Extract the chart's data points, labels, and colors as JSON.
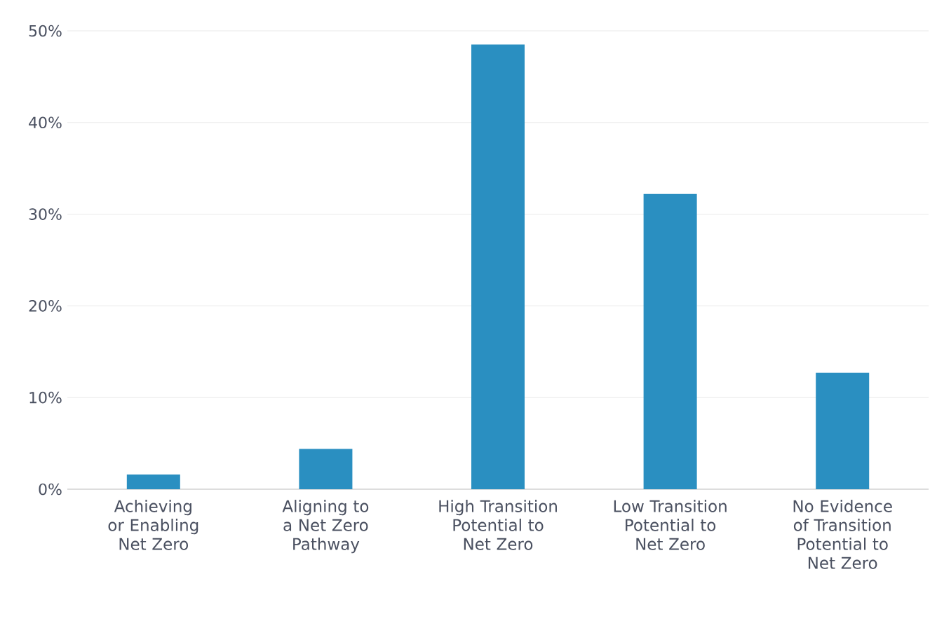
{
  "chart_data": {
    "type": "bar",
    "categories": [
      "Achieving or Enabling Net Zero",
      "Aligning to a Net Zero Pathway",
      "High Transition Potential to Net Zero",
      "Low Transition Potential to Net Zero",
      "No Evidence of Transition Potential to Net Zero"
    ],
    "values": [
      1.6,
      4.4,
      48.5,
      32.2,
      12.7
    ],
    "color": "#2a8fc1",
    "ylim": [
      0,
      50
    ],
    "yticks": [
      {
        "value": 0,
        "label": "0%"
      },
      {
        "value": 10,
        "label": "10%"
      },
      {
        "value": 20,
        "label": "20%"
      },
      {
        "value": 30,
        "label": "30%"
      },
      {
        "value": 40,
        "label": "40%"
      },
      {
        "value": 50,
        "label": "50%"
      }
    ],
    "grid": "y"
  }
}
